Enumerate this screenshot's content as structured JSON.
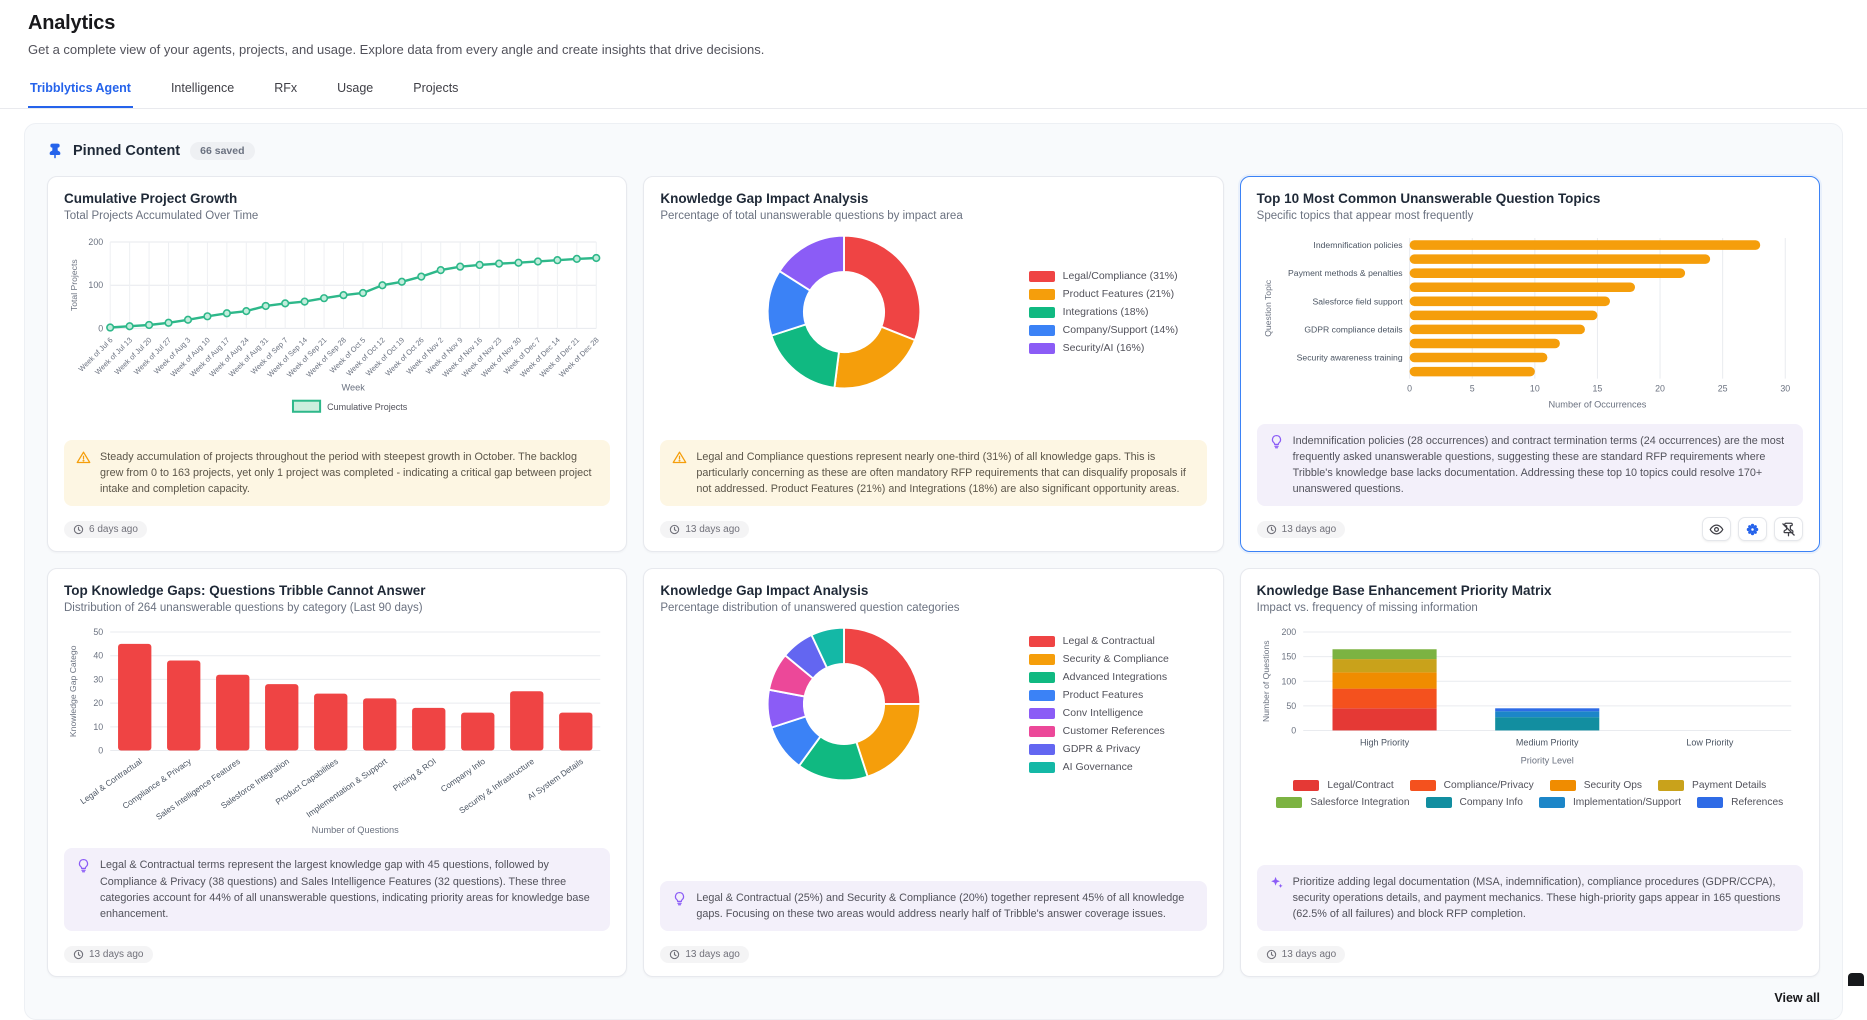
{
  "page": {
    "title": "Analytics",
    "subtitle": "Get a complete view of your agents, projects, and usage. Explore data from every angle and create insights that drive decisions."
  },
  "tabs": [
    {
      "label": "Tribblytics Agent",
      "active": true
    },
    {
      "label": "Intelligence",
      "active": false
    },
    {
      "label": "RFx",
      "active": false
    },
    {
      "label": "Usage",
      "active": false
    },
    {
      "label": "Projects",
      "active": false
    }
  ],
  "pinned": {
    "icon": "pin-icon",
    "title": "Pinned Content",
    "badge": "66 saved",
    "view_all": "View all"
  },
  "colors": {
    "accent_blue": "#2563EB",
    "line_green": "#2EB88A",
    "bar_orange": "#F59E0B",
    "bar_red": "#EF4444",
    "selected_card_border": "#3B82F6",
    "warning_amber": "#F59E0B",
    "insight_purple": "#8B5CF6"
  },
  "cards": [
    {
      "title": "Cumulative Project Growth",
      "subtitle": "Total Projects Accumulated Over Time",
      "note": {
        "kind": "warning",
        "icon": "warning-icon",
        "text": "Steady accumulation of projects throughout the period with steepest growth in October. The backlog grew from 0 to 163 projects, yet only 1 project was completed - indicating a critical gap between project intake and completion capacity."
      },
      "timestamp": "6 days ago"
    },
    {
      "title": "Knowledge Gap Impact Analysis",
      "subtitle": "Percentage of total unanswerable questions by impact area",
      "note": {
        "kind": "warning",
        "icon": "warning-icon",
        "text": "Legal and Compliance questions represent nearly one-third (31%) of all knowledge gaps. This is particularly concerning as these are often mandatory RFP requirements that can disqualify proposals if not addressed. Product Features (21%) and Integrations (18%) are also significant opportunity areas."
      },
      "timestamp": "13 days ago"
    },
    {
      "title": "Top 10 Most Common Unanswerable Question Topics",
      "subtitle": "Specific topics that appear most frequently",
      "selected": true,
      "actions": [
        "eye-icon",
        "ai-view-icon",
        "unpin-icon"
      ],
      "note": {
        "kind": "insight",
        "icon": "lightbulb-icon",
        "text": "Indemnification policies (28 occurrences) and contract termination terms (24 occurrences) are the most frequently asked unanswerable questions, suggesting these are standard RFP requirements where Tribble's knowledge base lacks documentation. Addressing these top 10 topics could resolve 170+ unanswered questions."
      },
      "timestamp": "13 days ago"
    },
    {
      "title": "Top Knowledge Gaps: Questions Tribble Cannot Answer",
      "subtitle": "Distribution of 264 unanswerable questions by category (Last 90 days)",
      "note": {
        "kind": "insight",
        "icon": "lightbulb-icon",
        "text": "Legal & Contractual terms represent the largest knowledge gap with 45 questions, followed by Compliance & Privacy (38 questions) and Sales Intelligence Features (32 questions). These three categories account for 44% of all unanswerable questions, indicating priority areas for knowledge base enhancement."
      },
      "timestamp": "13 days ago"
    },
    {
      "title": "Knowledge Gap Impact Analysis",
      "subtitle": "Percentage distribution of unanswered question categories",
      "note": {
        "kind": "insight",
        "icon": "lightbulb-icon",
        "text": "Legal & Contractual (25%) and Security & Compliance (20%) together represent 45% of all knowledge gaps. Focusing on these two areas would address nearly half of Tribble's answer coverage issues."
      },
      "timestamp": "13 days ago"
    },
    {
      "title": "Knowledge Base Enhancement Priority Matrix",
      "subtitle": "Impact vs. frequency of missing information",
      "note": {
        "kind": "action",
        "icon": "sparkles-icon",
        "text": "Prioritize adding legal documentation (MSA, indemnification), compliance procedures (GDPR/CCPA), security operations details, and payment mechanics. These high-priority gaps appear in 165 questions (62.5% of all failures) and block RFP completion."
      },
      "timestamp": "13 days ago"
    }
  ],
  "chart_data": [
    {
      "type": "line",
      "title": "Cumulative Project Growth",
      "series_name": "Cumulative Projects",
      "x": [
        "Week of Jul 6",
        "Week of Jul 13",
        "Week of Jul 20",
        "Week of Jul 27",
        "Week of Aug 3",
        "Week of Aug 10",
        "Week of Aug 17",
        "Week of Aug 24",
        "Week of Aug 31",
        "Week of Sep 7",
        "Week of Sep 14",
        "Week of Sep 21",
        "Week of Sep 28",
        "Week of Oct 5",
        "Week of Oct 12",
        "Week of Oct 19",
        "Week of Oct 26",
        "Week of Nov 2",
        "Week of Nov 9",
        "Week of Nov 16",
        "Week of Nov 23",
        "Week of Nov 30",
        "Week of Dec 7",
        "Week of Dec 14",
        "Week of Dec 21",
        "Week of Dec 28"
      ],
      "values": [
        2,
        5,
        8,
        13,
        20,
        28,
        35,
        40,
        52,
        58,
        62,
        70,
        77,
        82,
        100,
        108,
        120,
        135,
        143,
        147,
        150,
        152,
        155,
        158,
        161,
        163
      ],
      "xlabel": "Week",
      "ylabel": "Total Projects",
      "ylim": [
        0,
        200
      ],
      "yticks": [
        0,
        100,
        200
      ],
      "color": "#2EB88A",
      "marker_fill": "#c2eddc",
      "grid": true,
      "legend_position": "bottom"
    },
    {
      "type": "donut",
      "title": "Knowledge Gap Impact Analysis",
      "legend_position": "right",
      "slices": [
        {
          "label": "Legal/Compliance (31%)",
          "value": 31,
          "color": "#EF4444"
        },
        {
          "label": "Product Features (21%)",
          "value": 21,
          "color": "#F59E0B"
        },
        {
          "label": "Integrations (18%)",
          "value": 18,
          "color": "#10B981"
        },
        {
          "label": "Company/Support (14%)",
          "value": 14,
          "color": "#3B82F6"
        },
        {
          "label": "Security/AI (16%)",
          "value": 16,
          "color": "#8B5CF6"
        }
      ]
    },
    {
      "type": "hbar",
      "title": "Top 10 Most Common Unanswerable Question Topics",
      "categories": [
        "Indemnification policies",
        "",
        "Payment methods & penalties",
        "",
        "Salesforce field support",
        "",
        "GDPR compliance details",
        "",
        "Security awareness training",
        ""
      ],
      "values": [
        28,
        24,
        22,
        18,
        16,
        15,
        14,
        12,
        11,
        10
      ],
      "xlabel": "Number of Occurrences",
      "ylabel": "Question Topic",
      "xticks": [
        0,
        5,
        10,
        15,
        20,
        25,
        30
      ],
      "xlim": [
        0,
        30
      ],
      "color": "#F59E0B",
      "grid": true
    },
    {
      "type": "bar",
      "title": "Top Knowledge Gaps: Questions Tribble Cannot Answer",
      "categories": [
        "Legal & Contractual",
        "Compliance & Privacy",
        "Sales Intelligence Features",
        "Salesforce Integration",
        "Product Capabilities",
        "Implementation & Support",
        "Pricing & ROI",
        "Company Info",
        "Security & Infrastructure",
        "AI System Details"
      ],
      "values": [
        45,
        38,
        32,
        28,
        24,
        22,
        18,
        16,
        25,
        16
      ],
      "xlabel": "Number of Questions",
      "ylabel": "Knowledge Gap Catego",
      "ylim": [
        0,
        50
      ],
      "yticks": [
        0,
        10,
        20,
        30,
        40,
        50
      ],
      "color": "#EF4444",
      "grid": true
    },
    {
      "type": "donut",
      "title": "Knowledge Gap Impact Analysis",
      "legend_position": "right",
      "slices": [
        {
          "label": "Legal & Contractual",
          "value": 25,
          "color": "#EF4444"
        },
        {
          "label": "Security & Compliance",
          "value": 20,
          "color": "#F59E0B"
        },
        {
          "label": "Advanced Integrations",
          "value": 15,
          "color": "#10B981"
        },
        {
          "label": "Product Features",
          "value": 10,
          "color": "#3B82F6"
        },
        {
          "label": "Conv Intelligence",
          "value": 8,
          "color": "#8B5CF6"
        },
        {
          "label": "Customer References",
          "value": 8,
          "color": "#EC4899"
        },
        {
          "label": "GDPR & Privacy",
          "value": 7,
          "color": "#6366F1"
        },
        {
          "label": "AI Governance",
          "value": 7,
          "color": "#14B8A6"
        }
      ]
    },
    {
      "type": "stacked-bar",
      "title": "Knowledge Base Enhancement Priority Matrix",
      "categories": [
        "High Priority",
        "Medium Priority",
        "Low Priority"
      ],
      "series": [
        {
          "name": "Legal/Contract",
          "color": "#E53935",
          "values": [
            45,
            0,
            0
          ]
        },
        {
          "name": "Compliance/Privacy",
          "color": "#F4511E",
          "values": [
            40,
            0,
            0
          ]
        },
        {
          "name": "Security Ops",
          "color": "#F08C00",
          "values": [
            33,
            0,
            0
          ]
        },
        {
          "name": "Payment Details",
          "color": "#C9A21B",
          "values": [
            27,
            0,
            0
          ]
        },
        {
          "name": "Salesforce Integration",
          "color": "#7CB342",
          "values": [
            20,
            0,
            0
          ]
        },
        {
          "name": "Company Info",
          "color": "#128EA0",
          "values": [
            0,
            27,
            0
          ]
        },
        {
          "name": "Implementation/Support",
          "color": "#1C86C8",
          "values": [
            0,
            12,
            0
          ]
        },
        {
          "name": "References",
          "color": "#2E6BE6",
          "values": [
            0,
            6,
            0
          ]
        }
      ],
      "xlabel": "Priority Level",
      "ylabel": "Number of Questions",
      "ylim": [
        0,
        200
      ],
      "yticks": [
        0,
        50,
        100,
        150,
        200
      ],
      "grid": true,
      "legend_position": "bottom"
    }
  ]
}
